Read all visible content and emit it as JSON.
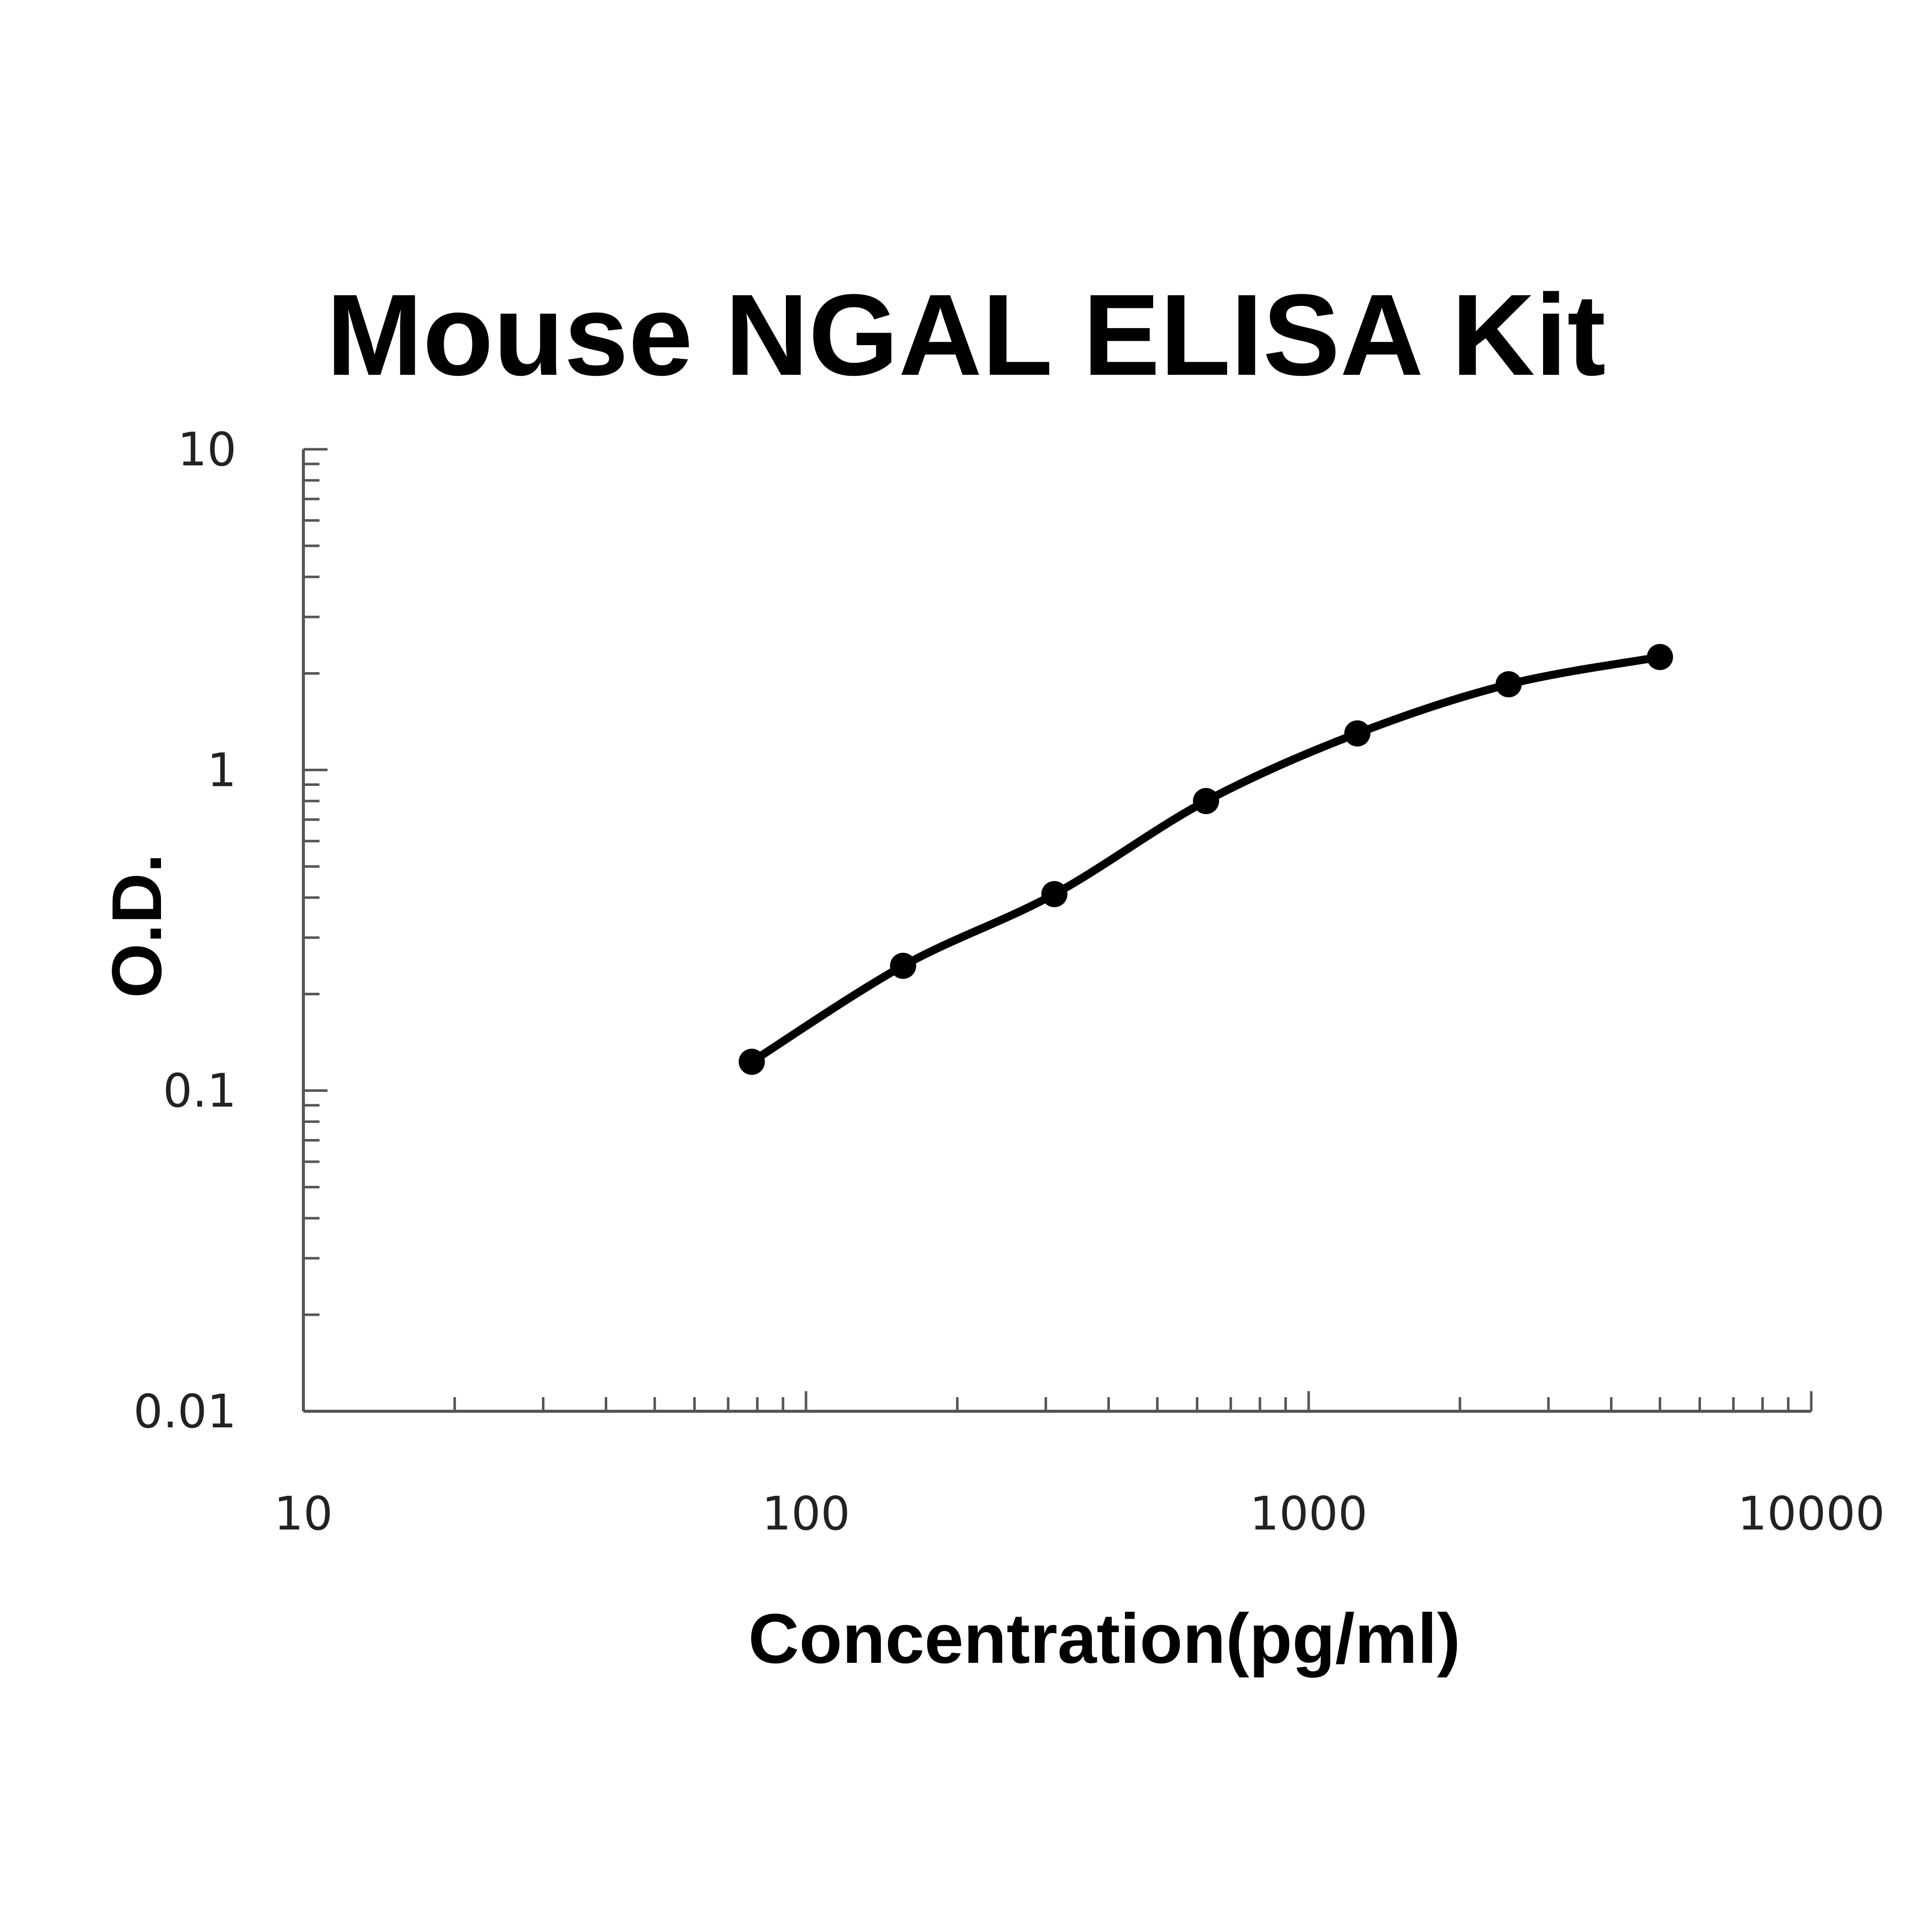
{
  "chart_data": {
    "type": "line",
    "title": "Mouse NGAL ELISA Kit",
    "xlabel": "Concentration(pg/ml)",
    "ylabel": "O.D.",
    "x_scale": "log",
    "y_scale": "log",
    "xlim": [
      10,
      10000
    ],
    "ylim": [
      0.01,
      10
    ],
    "x_ticks": [
      "10",
      "100",
      "1000",
      "10000"
    ],
    "y_ticks": [
      "0.01",
      "0.1",
      "1",
      "10"
    ],
    "grid": false,
    "legend": "none",
    "series": [
      {
        "x": [
          78,
          156,
          312,
          625,
          1250,
          2500,
          5000
        ],
        "y": [
          0.123,
          0.245,
          0.41,
          0.8,
          1.3,
          1.85,
          2.25
        ],
        "color": "#000000",
        "markers": true
      }
    ]
  }
}
